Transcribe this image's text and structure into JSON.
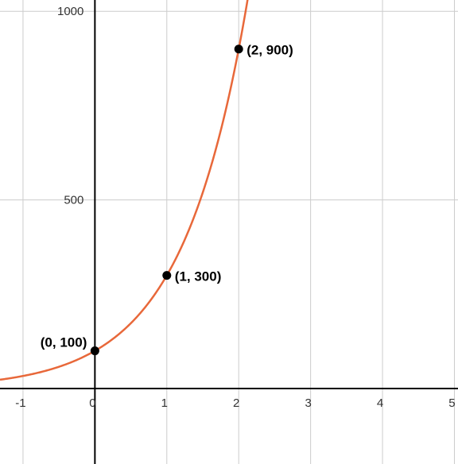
{
  "chart_data": {
    "type": "line",
    "title": "",
    "xlabel": "",
    "ylabel": "",
    "xlim": [
      -1.32,
      5.05
    ],
    "ylim": [
      -200,
      1030
    ],
    "grid": true,
    "x_ticks": [
      -1,
      0,
      1,
      2,
      3,
      4,
      5
    ],
    "x_tick_labels": [
      "-1",
      "0",
      "1",
      "2",
      "3",
      "4",
      "5"
    ],
    "y_ticks": [
      500,
      1000
    ],
    "y_tick_labels": [
      "500",
      "1000"
    ],
    "series": [
      {
        "function": "y = 100 * 3^x",
        "color": "#e8683a"
      }
    ],
    "points": [
      {
        "x": 0,
        "y": 100,
        "label": "(0, 100)",
        "label_side": "left"
      },
      {
        "x": 1,
        "y": 300,
        "label": "(1, 300)",
        "label_side": "right"
      },
      {
        "x": 2,
        "y": 900,
        "label": "(2, 900)",
        "label_side": "right"
      }
    ]
  }
}
